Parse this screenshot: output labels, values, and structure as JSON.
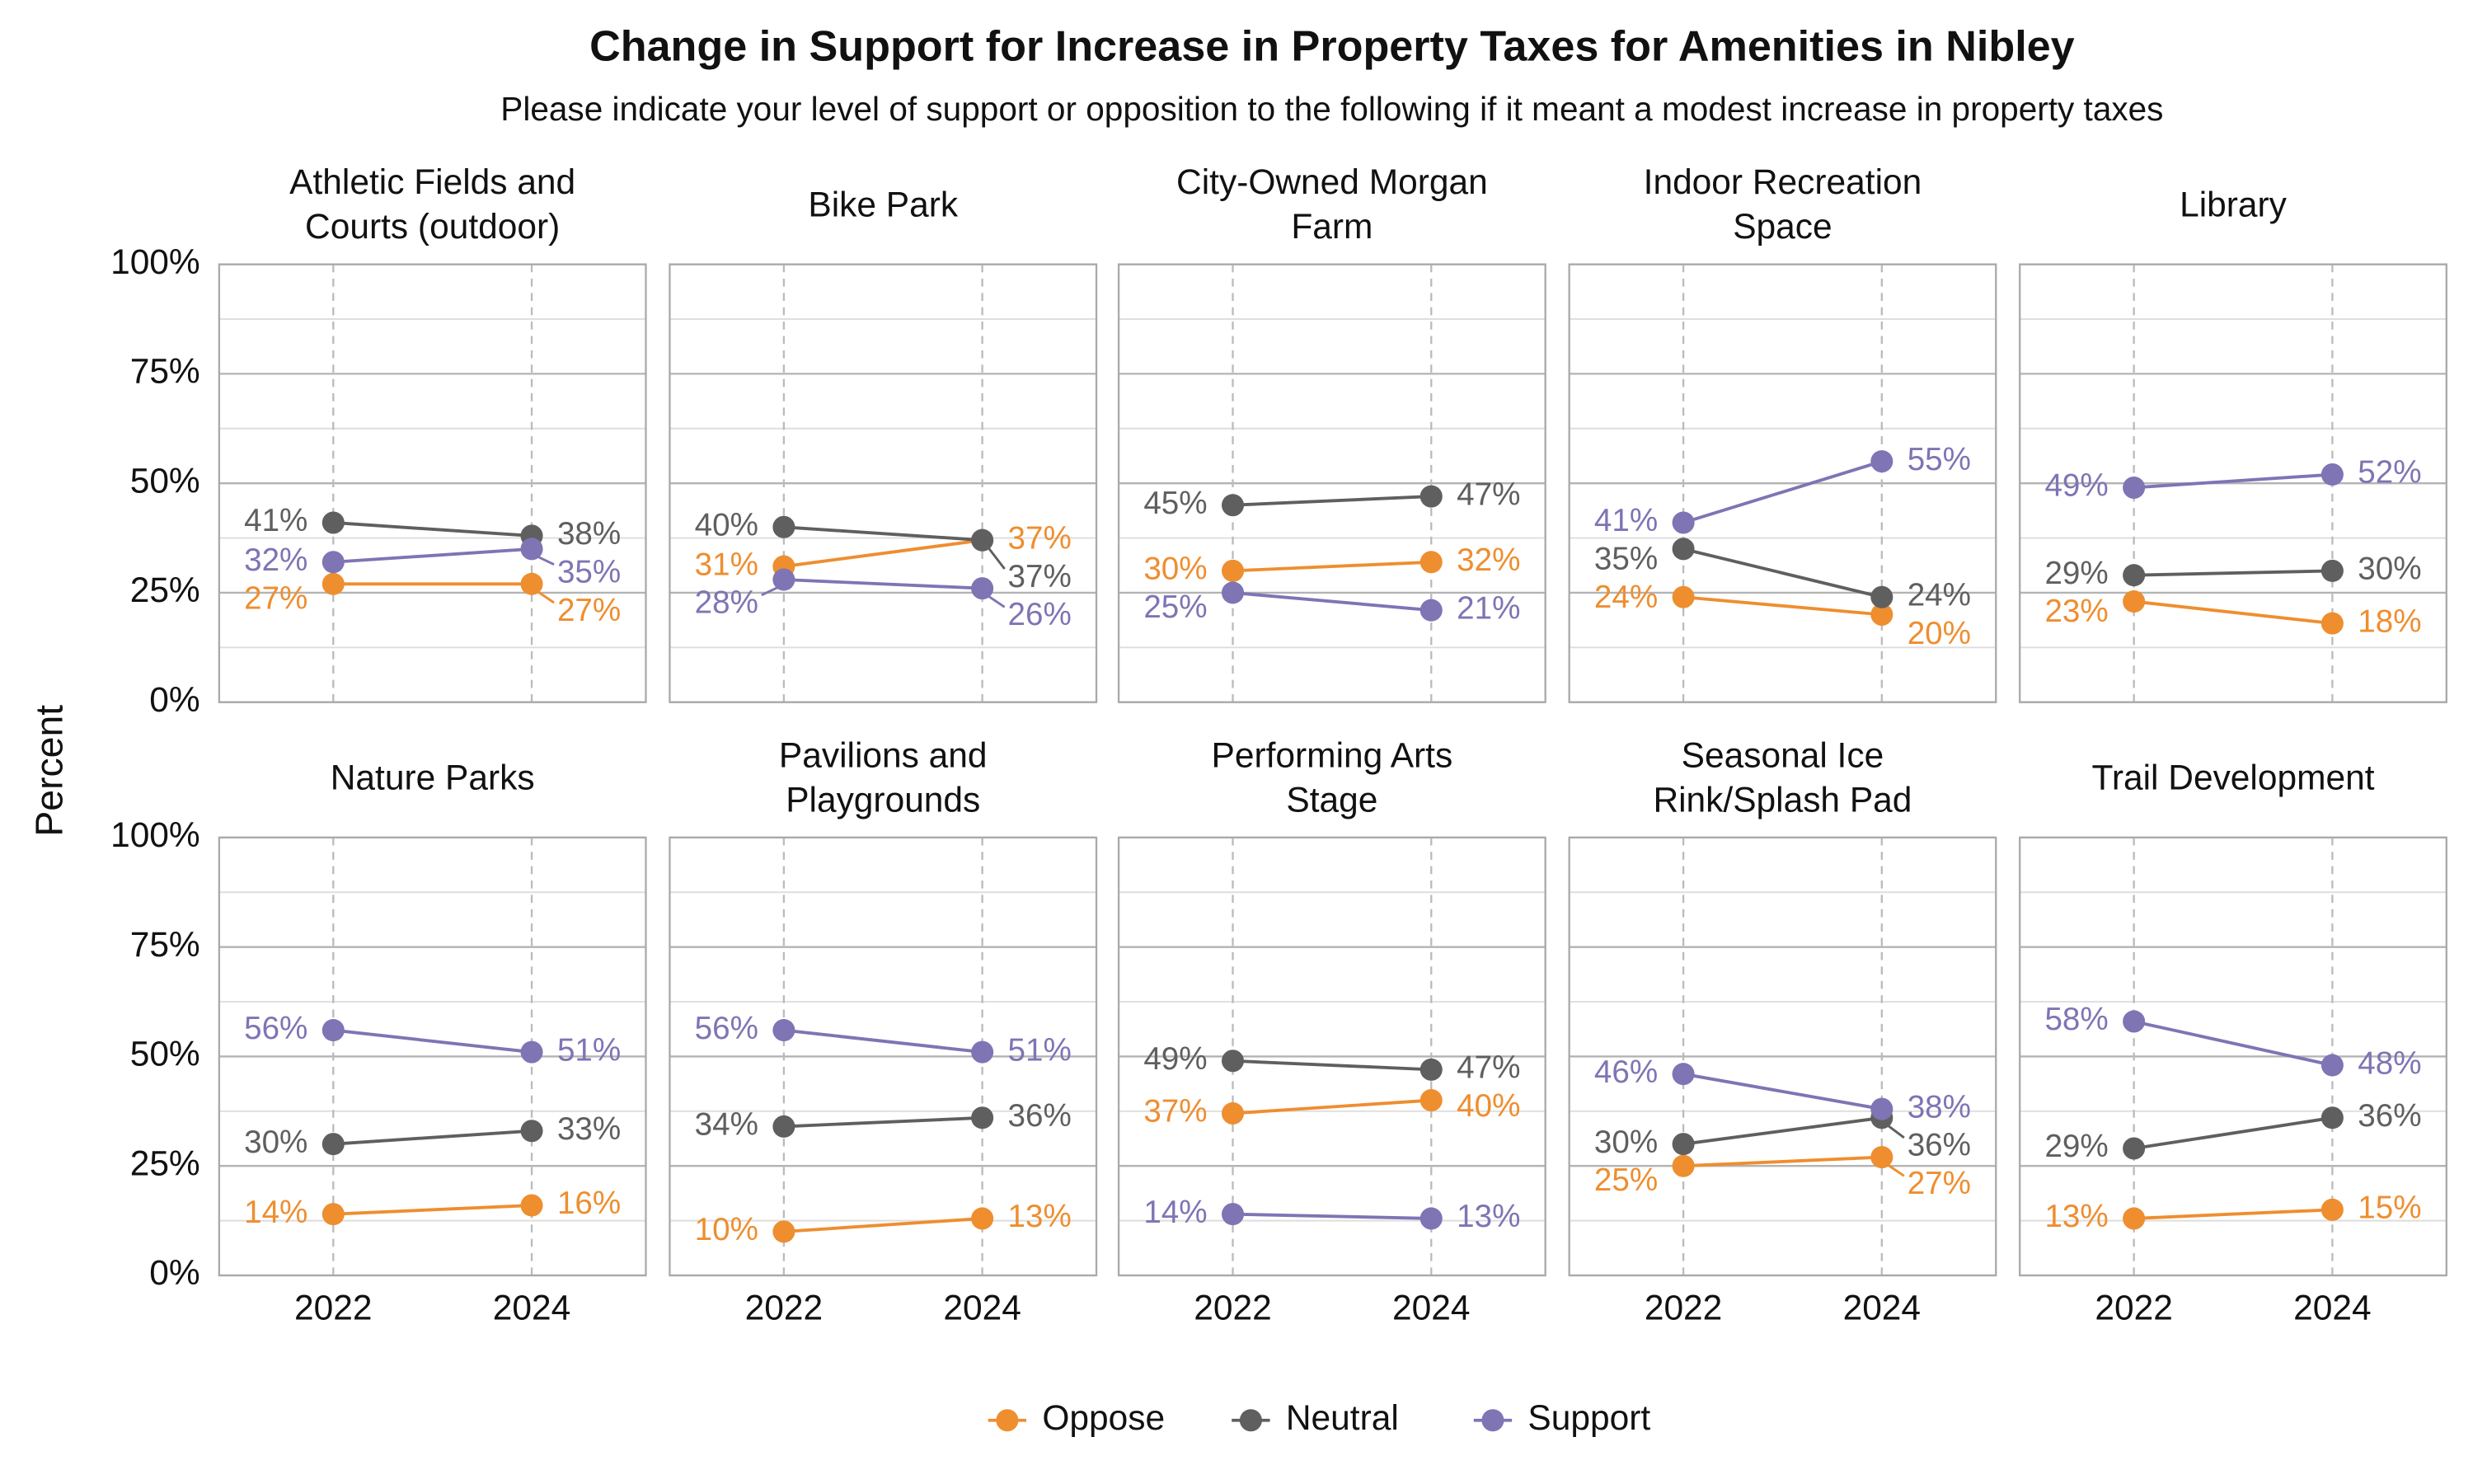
{
  "title": "Change in Support for Increase in Property Taxes for Amenities in Nibley",
  "subtitle": "Please indicate your level of support or opposition to the following if it meant a modest increase in property taxes",
  "ylabel": "Percent",
  "chart_data": [
    {
      "type": "line",
      "title": "Athletic Fields and\nCourts (outdoor)",
      "x": [
        2022,
        2024
      ],
      "xlim": [
        2020.85,
        2025.15
      ],
      "xticks": [
        2022,
        2024
      ],
      "ylim": [
        0,
        100
      ],
      "yticks": [
        {
          "value": 0,
          "label": "0%"
        },
        {
          "value": 25,
          "label": "25%"
        },
        {
          "value": 50,
          "label": "50%"
        },
        {
          "value": 75,
          "label": "75%"
        },
        {
          "value": 100,
          "label": "100%"
        }
      ],
      "minor_yticks": [
        12.5,
        37.5,
        62.5,
        87.5
      ],
      "series": [
        {
          "name": "Oppose",
          "color": "#ee8e2f",
          "values": [
            27,
            27
          ],
          "value_labels": [
            "27%",
            "27%"
          ]
        },
        {
          "name": "Neutral",
          "color": "#5f5f5f",
          "values": [
            41,
            38
          ],
          "value_labels": [
            "41%",
            "38%"
          ]
        },
        {
          "name": "Support",
          "color": "#7f74b4",
          "values": [
            32,
            35
          ],
          "value_labels": [
            "32%",
            "35%"
          ]
        }
      ]
    },
    {
      "type": "line",
      "title": "Bike Park",
      "x": [
        2022,
        2024
      ],
      "xlim": [
        2020.85,
        2025.15
      ],
      "xticks": [
        2022,
        2024
      ],
      "ylim": [
        0,
        100
      ],
      "yticks": [
        {
          "value": 0,
          "label": "0%"
        },
        {
          "value": 25,
          "label": "25%"
        },
        {
          "value": 50,
          "label": "50%"
        },
        {
          "value": 75,
          "label": "75%"
        },
        {
          "value": 100,
          "label": "100%"
        }
      ],
      "minor_yticks": [
        12.5,
        37.5,
        62.5,
        87.5
      ],
      "series": [
        {
          "name": "Oppose",
          "color": "#ee8e2f",
          "values": [
            31,
            37
          ],
          "value_labels": [
            "31%",
            "37%"
          ]
        },
        {
          "name": "Neutral",
          "color": "#5f5f5f",
          "values": [
            40,
            37
          ],
          "value_labels": [
            "40%",
            "37%"
          ]
        },
        {
          "name": "Support",
          "color": "#7f74b4",
          "values": [
            28,
            26
          ],
          "value_labels": [
            "28%",
            "26%"
          ]
        }
      ]
    },
    {
      "type": "line",
      "title": "City-Owned Morgan\nFarm",
      "x": [
        2022,
        2024
      ],
      "xlim": [
        2020.85,
        2025.15
      ],
      "xticks": [
        2022,
        2024
      ],
      "ylim": [
        0,
        100
      ],
      "yticks": [
        {
          "value": 0,
          "label": "0%"
        },
        {
          "value": 25,
          "label": "25%"
        },
        {
          "value": 50,
          "label": "50%"
        },
        {
          "value": 75,
          "label": "75%"
        },
        {
          "value": 100,
          "label": "100%"
        }
      ],
      "minor_yticks": [
        12.5,
        37.5,
        62.5,
        87.5
      ],
      "series": [
        {
          "name": "Oppose",
          "color": "#ee8e2f",
          "values": [
            30,
            32
          ],
          "value_labels": [
            "30%",
            "32%"
          ]
        },
        {
          "name": "Neutral",
          "color": "#5f5f5f",
          "values": [
            45,
            47
          ],
          "value_labels": [
            "45%",
            "47%"
          ]
        },
        {
          "name": "Support",
          "color": "#7f74b4",
          "values": [
            25,
            21
          ],
          "value_labels": [
            "25%",
            "21%"
          ]
        }
      ]
    },
    {
      "type": "line",
      "title": "Indoor Recreation\nSpace",
      "x": [
        2022,
        2024
      ],
      "xlim": [
        2020.85,
        2025.15
      ],
      "xticks": [
        2022,
        2024
      ],
      "ylim": [
        0,
        100
      ],
      "yticks": [
        {
          "value": 0,
          "label": "0%"
        },
        {
          "value": 25,
          "label": "25%"
        },
        {
          "value": 50,
          "label": "50%"
        },
        {
          "value": 75,
          "label": "75%"
        },
        {
          "value": 100,
          "label": "100%"
        }
      ],
      "minor_yticks": [
        12.5,
        37.5,
        62.5,
        87.5
      ],
      "series": [
        {
          "name": "Oppose",
          "color": "#ee8e2f",
          "values": [
            24,
            20
          ],
          "value_labels": [
            "24%",
            "20%"
          ]
        },
        {
          "name": "Neutral",
          "color": "#5f5f5f",
          "values": [
            35,
            24
          ],
          "value_labels": [
            "35%",
            "24%"
          ]
        },
        {
          "name": "Support",
          "color": "#7f74b4",
          "values": [
            41,
            55
          ],
          "value_labels": [
            "41%",
            "55%"
          ]
        }
      ]
    },
    {
      "type": "line",
      "title": "Library",
      "x": [
        2022,
        2024
      ],
      "xlim": [
        2020.85,
        2025.15
      ],
      "xticks": [
        2022,
        2024
      ],
      "ylim": [
        0,
        100
      ],
      "yticks": [
        {
          "value": 0,
          "label": "0%"
        },
        {
          "value": 25,
          "label": "25%"
        },
        {
          "value": 50,
          "label": "50%"
        },
        {
          "value": 75,
          "label": "75%"
        },
        {
          "value": 100,
          "label": "100%"
        }
      ],
      "minor_yticks": [
        12.5,
        37.5,
        62.5,
        87.5
      ],
      "series": [
        {
          "name": "Oppose",
          "color": "#ee8e2f",
          "values": [
            23,
            18
          ],
          "value_labels": [
            "23%",
            "18%"
          ]
        },
        {
          "name": "Neutral",
          "color": "#5f5f5f",
          "values": [
            29,
            30
          ],
          "value_labels": [
            "29%",
            "30%"
          ]
        },
        {
          "name": "Support",
          "color": "#7f74b4",
          "values": [
            49,
            52
          ],
          "value_labels": [
            "49%",
            "52%"
          ]
        }
      ]
    },
    {
      "type": "line",
      "title": "Nature Parks",
      "x": [
        2022,
        2024
      ],
      "xlim": [
        2020.85,
        2025.15
      ],
      "xticks": [
        2022,
        2024
      ],
      "ylim": [
        0,
        100
      ],
      "yticks": [
        {
          "value": 0,
          "label": "0%"
        },
        {
          "value": 25,
          "label": "25%"
        },
        {
          "value": 50,
          "label": "50%"
        },
        {
          "value": 75,
          "label": "75%"
        },
        {
          "value": 100,
          "label": "100%"
        }
      ],
      "minor_yticks": [
        12.5,
        37.5,
        62.5,
        87.5
      ],
      "series": [
        {
          "name": "Oppose",
          "color": "#ee8e2f",
          "values": [
            14,
            16
          ],
          "value_labels": [
            "14%",
            "16%"
          ]
        },
        {
          "name": "Neutral",
          "color": "#5f5f5f",
          "values": [
            30,
            33
          ],
          "value_labels": [
            "30%",
            "33%"
          ]
        },
        {
          "name": "Support",
          "color": "#7f74b4",
          "values": [
            56,
            51
          ],
          "value_labels": [
            "56%",
            "51%"
          ]
        }
      ]
    },
    {
      "type": "line",
      "title": "Pavilions and\nPlaygrounds",
      "x": [
        2022,
        2024
      ],
      "xlim": [
        2020.85,
        2025.15
      ],
      "xticks": [
        2022,
        2024
      ],
      "ylim": [
        0,
        100
      ],
      "yticks": [
        {
          "value": 0,
          "label": "0%"
        },
        {
          "value": 25,
          "label": "25%"
        },
        {
          "value": 50,
          "label": "50%"
        },
        {
          "value": 75,
          "label": "75%"
        },
        {
          "value": 100,
          "label": "100%"
        }
      ],
      "minor_yticks": [
        12.5,
        37.5,
        62.5,
        87.5
      ],
      "series": [
        {
          "name": "Oppose",
          "color": "#ee8e2f",
          "values": [
            10,
            13
          ],
          "value_labels": [
            "10%",
            "13%"
          ]
        },
        {
          "name": "Neutral",
          "color": "#5f5f5f",
          "values": [
            34,
            36
          ],
          "value_labels": [
            "34%",
            "36%"
          ]
        },
        {
          "name": "Support",
          "color": "#7f74b4",
          "values": [
            56,
            51
          ],
          "value_labels": [
            "56%",
            "51%"
          ]
        }
      ]
    },
    {
      "type": "line",
      "title": "Performing Arts\nStage",
      "x": [
        2022,
        2024
      ],
      "xlim": [
        2020.85,
        2025.15
      ],
      "xticks": [
        2022,
        2024
      ],
      "ylim": [
        0,
        100
      ],
      "yticks": [
        {
          "value": 0,
          "label": "0%"
        },
        {
          "value": 25,
          "label": "25%"
        },
        {
          "value": 50,
          "label": "50%"
        },
        {
          "value": 75,
          "label": "75%"
        },
        {
          "value": 100,
          "label": "100%"
        }
      ],
      "minor_yticks": [
        12.5,
        37.5,
        62.5,
        87.5
      ],
      "series": [
        {
          "name": "Oppose",
          "color": "#ee8e2f",
          "values": [
            37,
            40
          ],
          "value_labels": [
            "37%",
            "40%"
          ]
        },
        {
          "name": "Neutral",
          "color": "#5f5f5f",
          "values": [
            49,
            47
          ],
          "value_labels": [
            "49%",
            "47%"
          ]
        },
        {
          "name": "Support",
          "color": "#7f74b4",
          "values": [
            14,
            13
          ],
          "value_labels": [
            "14%",
            "13%"
          ]
        }
      ]
    },
    {
      "type": "line",
      "title": "Seasonal Ice\nRink/Splash Pad",
      "x": [
        2022,
        2024
      ],
      "xlim": [
        2020.85,
        2025.15
      ],
      "xticks": [
        2022,
        2024
      ],
      "ylim": [
        0,
        100
      ],
      "yticks": [
        {
          "value": 0,
          "label": "0%"
        },
        {
          "value": 25,
          "label": "25%"
        },
        {
          "value": 50,
          "label": "50%"
        },
        {
          "value": 75,
          "label": "75%"
        },
        {
          "value": 100,
          "label": "100%"
        }
      ],
      "minor_yticks": [
        12.5,
        37.5,
        62.5,
        87.5
      ],
      "series": [
        {
          "name": "Oppose",
          "color": "#ee8e2f",
          "values": [
            25,
            27
          ],
          "value_labels": [
            "25%",
            "27%"
          ]
        },
        {
          "name": "Neutral",
          "color": "#5f5f5f",
          "values": [
            30,
            36
          ],
          "value_labels": [
            "30%",
            "36%"
          ]
        },
        {
          "name": "Support",
          "color": "#7f74b4",
          "values": [
            46,
            38
          ],
          "value_labels": [
            "46%",
            "38%"
          ]
        }
      ]
    },
    {
      "type": "line",
      "title": "Trail Development",
      "x": [
        2022,
        2024
      ],
      "xlim": [
        2020.85,
        2025.15
      ],
      "xticks": [
        2022,
        2024
      ],
      "ylim": [
        0,
        100
      ],
      "yticks": [
        {
          "value": 0,
          "label": "0%"
        },
        {
          "value": 25,
          "label": "25%"
        },
        {
          "value": 50,
          "label": "50%"
        },
        {
          "value": 75,
          "label": "75%"
        },
        {
          "value": 100,
          "label": "100%"
        }
      ],
      "minor_yticks": [
        12.5,
        37.5,
        62.5,
        87.5
      ],
      "series": [
        {
          "name": "Oppose",
          "color": "#ee8e2f",
          "values": [
            13,
            15
          ],
          "value_labels": [
            "13%",
            "15%"
          ]
        },
        {
          "name": "Neutral",
          "color": "#5f5f5f",
          "values": [
            29,
            36
          ],
          "value_labels": [
            "29%",
            "36%"
          ]
        },
        {
          "name": "Support",
          "color": "#7f74b4",
          "values": [
            58,
            48
          ],
          "value_labels": [
            "58%",
            "48%"
          ]
        }
      ]
    }
  ]
}
